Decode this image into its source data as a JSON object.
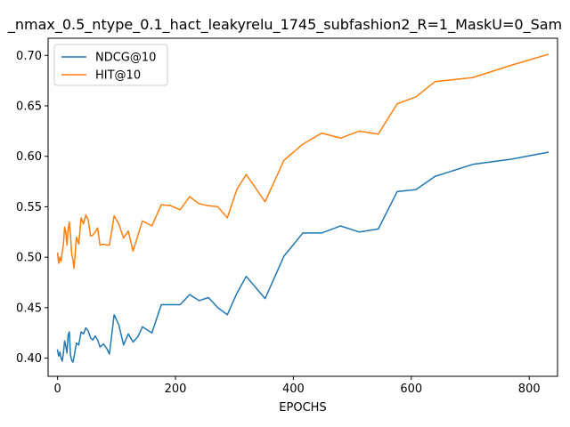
{
  "chart_data": {
    "type": "line",
    "title": "_nmax_0.5_ntype_0.1_hact_leakyrelu_1745_subfashion2_R=1_MaskU=0_Sam",
    "xlabel": "EPOCHS",
    "ylabel": "",
    "xlim": [
      -16,
      848
    ],
    "ylim": [
      0.382,
      0.717
    ],
    "xticks": [
      0,
      200,
      400,
      600,
      800
    ],
    "yticks": [
      0.4,
      0.45,
      0.5,
      0.55,
      0.6,
      0.65,
      0.7
    ],
    "grid": false,
    "legend_position": "upper left",
    "series": [
      {
        "name": "NDCG@10",
        "color": "#1f77b4",
        "x": [
          0,
          2,
          4,
          6,
          8,
          10,
          12,
          14,
          16,
          18,
          20,
          22,
          24,
          26,
          28,
          32,
          36,
          40,
          44,
          48,
          52,
          56,
          60,
          64,
          68,
          72,
          78,
          84,
          88,
          96,
          104,
          112,
          120,
          128,
          136,
          144,
          160,
          176,
          192,
          208,
          224,
          240,
          256,
          272,
          288,
          304,
          320,
          352,
          384,
          416,
          448,
          480,
          512,
          544,
          576,
          608,
          640,
          704,
          768,
          832
        ],
        "y": [
          0.408,
          0.402,
          0.406,
          0.4,
          0.397,
          0.405,
          0.417,
          0.412,
          0.405,
          0.423,
          0.426,
          0.403,
          0.398,
          0.396,
          0.401,
          0.415,
          0.413,
          0.426,
          0.424,
          0.43,
          0.427,
          0.42,
          0.418,
          0.422,
          0.418,
          0.411,
          0.414,
          0.409,
          0.404,
          0.443,
          0.433,
          0.413,
          0.424,
          0.416,
          0.421,
          0.431,
          0.425,
          0.453,
          0.453,
          0.453,
          0.463,
          0.457,
          0.46,
          0.45,
          0.443,
          0.464,
          0.481,
          0.459,
          0.501,
          0.524,
          0.524,
          0.531,
          0.525,
          0.528,
          0.565,
          0.567,
          0.58,
          0.592,
          0.597,
          0.604
        ]
      },
      {
        "name": "HIT@10",
        "color": "#ff7f0e",
        "x": [
          0,
          2,
          4,
          6,
          8,
          10,
          12,
          14,
          16,
          18,
          20,
          22,
          24,
          26,
          28,
          32,
          36,
          40,
          44,
          48,
          52,
          56,
          60,
          64,
          68,
          72,
          78,
          84,
          88,
          96,
          104,
          112,
          120,
          128,
          136,
          144,
          160,
          176,
          192,
          208,
          224,
          240,
          256,
          272,
          288,
          304,
          320,
          352,
          384,
          416,
          448,
          480,
          512,
          544,
          576,
          608,
          640,
          704,
          768,
          832
        ],
        "y": [
          0.504,
          0.494,
          0.5,
          0.496,
          0.505,
          0.513,
          0.53,
          0.525,
          0.512,
          0.528,
          0.535,
          0.522,
          0.503,
          0.498,
          0.489,
          0.52,
          0.513,
          0.539,
          0.533,
          0.542,
          0.537,
          0.521,
          0.522,
          0.525,
          0.529,
          0.512,
          0.513,
          0.512,
          0.512,
          0.541,
          0.533,
          0.519,
          0.526,
          0.506,
          0.521,
          0.536,
          0.531,
          0.552,
          0.551,
          0.547,
          0.56,
          0.553,
          0.551,
          0.55,
          0.539,
          0.567,
          0.582,
          0.555,
          0.596,
          0.612,
          0.623,
          0.618,
          0.625,
          0.622,
          0.652,
          0.659,
          0.674,
          0.678,
          0.69,
          0.701
        ]
      }
    ]
  }
}
